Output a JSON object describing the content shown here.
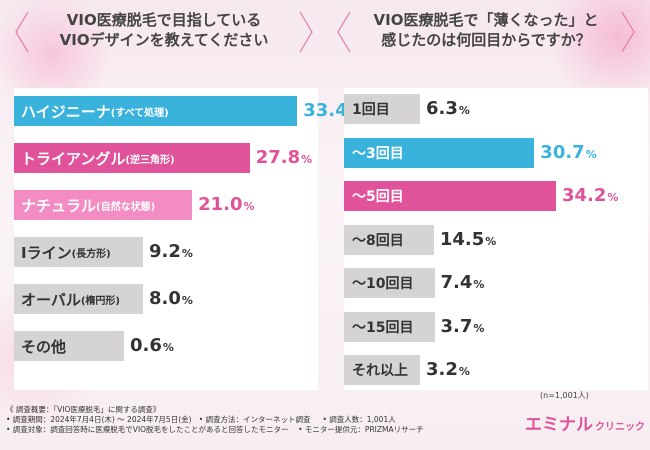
{
  "colors": {
    "blue": "#3ab3dc",
    "magenta": "#e0539a",
    "light_pink": "#f28cc2",
    "gray": "#d6d3d4",
    "panel": "#ffffff"
  },
  "chart_data": [
    {
      "type": "bar",
      "orientation": "horizontal",
      "title_line1": "VIO医療脱毛で目指している",
      "title_line2": "VIOデザインを教えてください",
      "categories": [
        {
          "name": "ハイジニーナ",
          "sub": "(すべて処理)"
        },
        {
          "name": "トライアングル",
          "sub": "(逆三角形)"
        },
        {
          "name": "ナチュラル",
          "sub": "(自然な状態)"
        },
        {
          "name": "Iライン",
          "sub": "(長方形)"
        },
        {
          "name": "オーバル",
          "sub": "(楕円形)"
        },
        {
          "name": "その他",
          "sub": ""
        }
      ],
      "values": [
        33.4,
        27.8,
        21.0,
        9.2,
        8.0,
        0.6
      ],
      "value_labels": [
        "33.4",
        "27.8",
        "21.0",
        "9.2",
        "8.0",
        "0.6"
      ],
      "unit": "%",
      "bar_colors": [
        "blue",
        "magenta",
        "light_pink",
        "gray",
        "gray",
        "gray"
      ],
      "xlim": [
        0,
        34.2
      ]
    },
    {
      "type": "bar",
      "orientation": "horizontal",
      "title_line1": "VIO医療脱毛で「薄くなった」と",
      "title_line2": "感じたのは何回目からですか？",
      "categories": [
        {
          "name": "1回目",
          "sub": ""
        },
        {
          "name": "〜3回目",
          "sub": ""
        },
        {
          "name": "〜5回目",
          "sub": ""
        },
        {
          "name": "〜8回目",
          "sub": ""
        },
        {
          "name": "〜10回目",
          "sub": ""
        },
        {
          "name": "〜15回目",
          "sub": ""
        },
        {
          "name": "それ以上",
          "sub": ""
        }
      ],
      "values": [
        6.3,
        30.7,
        34.2,
        14.5,
        7.4,
        3.7,
        3.2
      ],
      "value_labels": [
        "6.3",
        "30.7",
        "34.2",
        "14.5",
        "7.4",
        "3.7",
        "3.2"
      ],
      "unit": "%",
      "bar_colors": [
        "gray",
        "blue",
        "magenta",
        "gray",
        "gray",
        "gray",
        "gray"
      ],
      "xlim": [
        0,
        34.2
      ]
    }
  ],
  "note": "(n=1,001人)",
  "footer": {
    "line1": "《 調査概要：「VIO医療脱毛」に関する調査》",
    "line2a": "• 調査期間：2024年7月4日(木) 〜 2024年7月5日(金)",
    "line2b": "• 調査方法：インターネット調査",
    "line2c": "• 調査人数：1,001人",
    "line3a": "• 調査対象：調査回答時に医療脱毛でVIO脱毛をしたことがあると回答したモニター",
    "line3b": "• モニター提供元：PRIZMAリサーチ"
  },
  "brand": {
    "main": "エミナル",
    "sub": "クリニック"
  }
}
